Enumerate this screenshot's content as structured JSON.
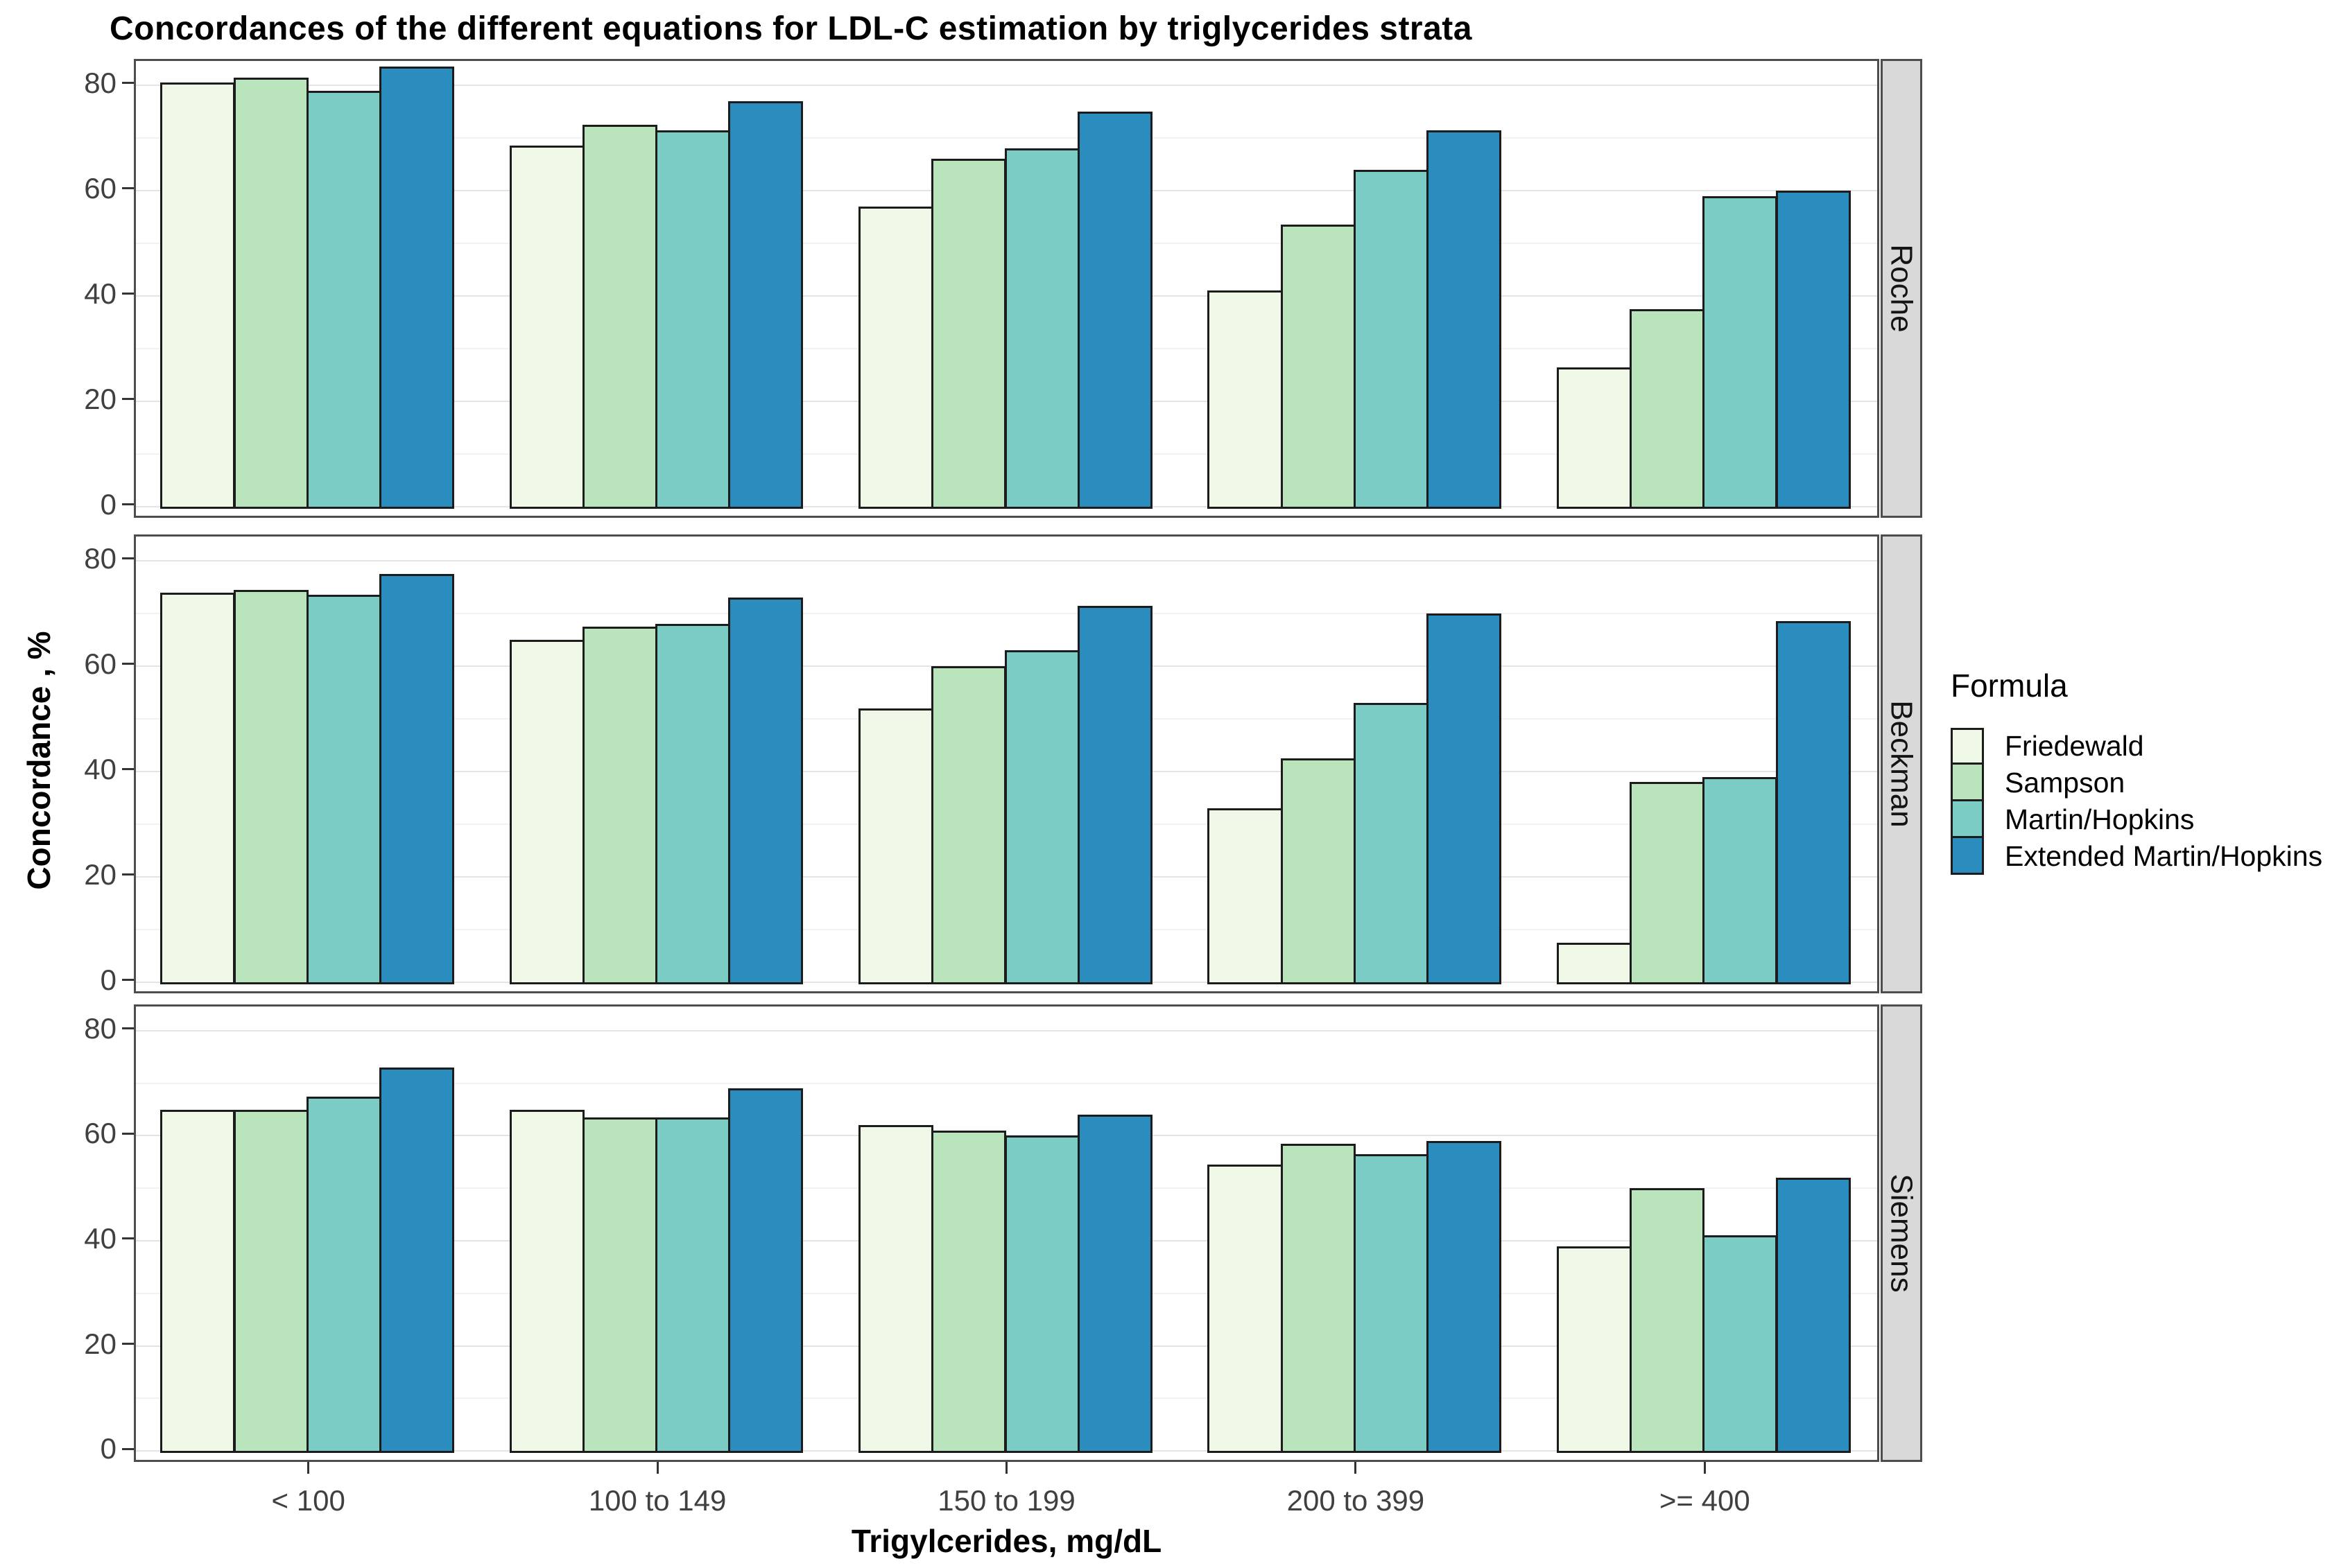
{
  "chart_data": {
    "type": "bar",
    "title": "Concordances of the different equations for LDL-C estimation by triglycerides strata",
    "xlabel": "Trigylcerides, mg/dL",
    "ylabel": "Concordance , %",
    "categories": [
      "< 100",
      "100 to 149",
      "150 to 199",
      "200 to 399",
      ">= 400"
    ],
    "series_names": [
      "Friedewald",
      "Sampson",
      "Martin/Hopkins",
      "Extended Martin/Hopkins"
    ],
    "series_colors": [
      "#F0F9E8",
      "#BAE4BC",
      "#7BCCC4",
      "#2B8CBE"
    ],
    "facets": [
      {
        "name": "Roche",
        "series": [
          {
            "name": "Friedewald",
            "values": [
              80.5,
              68.5,
              57,
              41,
              26.5
            ]
          },
          {
            "name": "Sampson",
            "values": [
              81.5,
              72.5,
              66,
              53.5,
              37.5
            ]
          },
          {
            "name": "Martin/Hopkins",
            "values": [
              79,
              71.5,
              68,
              64,
              59
            ]
          },
          {
            "name": "Extended Martin/Hopkins",
            "values": [
              83.5,
              77,
              75,
              71.5,
              60
            ]
          }
        ]
      },
      {
        "name": "Beckman",
        "series": [
          {
            "name": "Friedewald",
            "values": [
              74,
              65,
              52,
              33,
              7.5
            ]
          },
          {
            "name": "Sampson",
            "values": [
              74.5,
              67.5,
              60,
              42.5,
              38
            ]
          },
          {
            "name": "Martin/Hopkins",
            "values": [
              73.5,
              68,
              63,
              53,
              39
            ]
          },
          {
            "name": "Extended Martin/Hopkins",
            "values": [
              77.5,
              73,
              71.5,
              70,
              68.5
            ]
          }
        ]
      },
      {
        "name": "Siemens",
        "series": [
          {
            "name": "Friedewald",
            "values": [
              65,
              65,
              62,
              54.5,
              39
            ]
          },
          {
            "name": "Sampson",
            "values": [
              65,
              63.5,
              61,
              58.5,
              50
            ]
          },
          {
            "name": "Martin/Hopkins",
            "values": [
              67.5,
              63.5,
              60,
              56.5,
              41
            ]
          },
          {
            "name": "Extended Martin/Hopkins",
            "values": [
              73,
              69,
              64,
              59,
              52
            ]
          }
        ]
      }
    ],
    "legend": {
      "title": "Formula",
      "position": "right",
      "entries": [
        "Friedewald",
        "Sampson",
        "Martin/Hopkins",
        "Extended Martin/Hopkins"
      ]
    },
    "yticks": [
      0,
      20,
      40,
      60,
      80
    ],
    "yminor": [
      10,
      30,
      50,
      70
    ],
    "ylim": [
      -2.5,
      84.6
    ],
    "grid": "horizontal major+minor"
  }
}
